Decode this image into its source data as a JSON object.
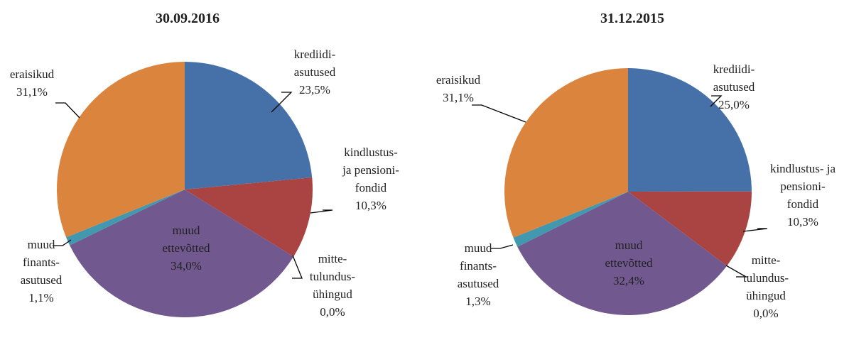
{
  "chart_data": [
    {
      "type": "pie",
      "title": "30.09.2016",
      "categories": [
        [
          "krediidi-",
          "asutused"
        ],
        [
          "kindlustus-",
          "ja pensioni-",
          "fondid"
        ],
        [
          "mitte-",
          "tulundus-",
          "ühingud"
        ],
        [
          "muud",
          "ettevõtted"
        ],
        [
          "muud",
          "finants-",
          "asutused"
        ],
        [
          "eraisikud"
        ]
      ],
      "values": [
        23.5,
        10.3,
        0.0,
        34.0,
        1.1,
        31.1
      ],
      "value_labels": [
        "23,5%",
        "10,3%",
        "0,0%",
        "34,0%",
        "1,1%",
        "31,1%"
      ],
      "colors": [
        "#4571a8",
        "#a94442",
        "#89a54e",
        "#71588f",
        "#4198af",
        "#db843d"
      ]
    },
    {
      "type": "pie",
      "title": "31.12.2015",
      "categories": [
        [
          "krediidi-",
          "asutused"
        ],
        [
          "kindlustus- ja",
          "pensioni-",
          "fondid"
        ],
        [
          "mitte-",
          "tulundus-",
          "ühingud"
        ],
        [
          "muud",
          "ettevõtted"
        ],
        [
          "muud",
          "finants-",
          "asutused"
        ],
        [
          "eraisikud"
        ]
      ],
      "values": [
        25.0,
        10.3,
        0.0,
        32.4,
        1.3,
        31.1
      ],
      "value_labels": [
        "25,0%",
        "10,3%",
        "0,0%",
        "32,4%",
        "1,3%",
        "31,1%"
      ],
      "colors": [
        "#4571a8",
        "#a94442",
        "#89a54e",
        "#71588f",
        "#4198af",
        "#db843d"
      ]
    }
  ]
}
